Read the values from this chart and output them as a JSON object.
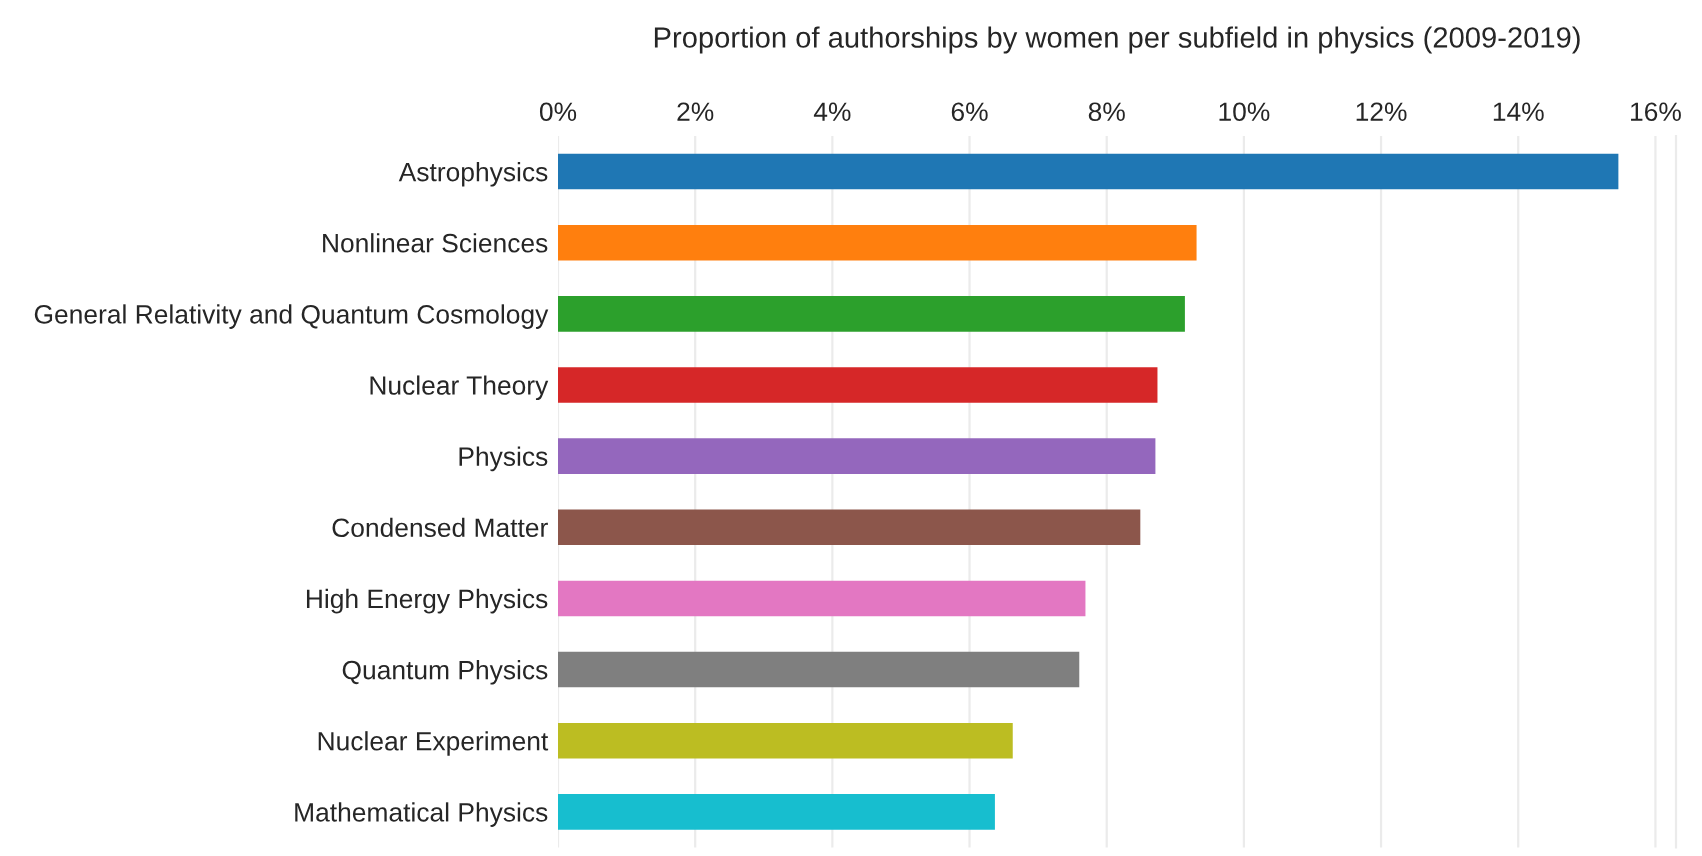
{
  "chart_data": {
    "type": "bar",
    "orientation": "horizontal",
    "title": "Proportion of authorships by women per subfield in physics (2009-2019)",
    "categories": [
      "Astrophysics",
      "Nonlinear Sciences",
      "General Relativity and Quantum Cosmology",
      "Nuclear Theory",
      "Physics",
      "Condensed Matter",
      "High Energy Physics",
      "Quantum Physics",
      "Nuclear Experiment",
      "Mathematical Physics"
    ],
    "values": [
      15.46,
      9.31,
      9.14,
      8.74,
      8.71,
      8.49,
      7.69,
      7.6,
      6.63,
      6.37
    ],
    "colors": [
      "#1f77b4",
      "#ff7f0e",
      "#2ca02c",
      "#d62728",
      "#9467bd",
      "#8c564b",
      "#e377c2",
      "#7f7f7f",
      "#bcbd22",
      "#17becf"
    ],
    "xlim": [
      0,
      16.3
    ],
    "xticks": [
      {
        "value": 0,
        "label": "0%"
      },
      {
        "value": 2,
        "label": "2%"
      },
      {
        "value": 4,
        "label": "4%"
      },
      {
        "value": 6,
        "label": "6%"
      },
      {
        "value": 8,
        "label": "8%"
      },
      {
        "value": 10,
        "label": "10%"
      },
      {
        "value": 12,
        "label": "12%"
      },
      {
        "value": 14,
        "label": "14%"
      },
      {
        "value": 16,
        "label": "16%"
      }
    ],
    "grid": "x"
  }
}
